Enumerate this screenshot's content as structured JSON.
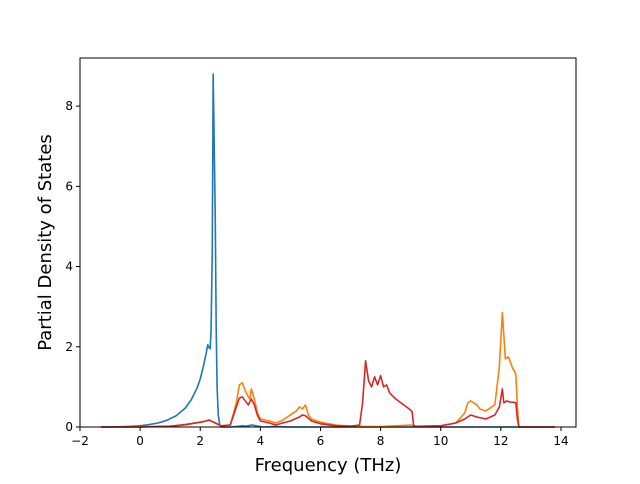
{
  "chart_data": {
    "type": "line",
    "title": "",
    "xlabel": "Frequency (THz)",
    "ylabel": "Partial Density of States",
    "xlim": [
      -2,
      14.5
    ],
    "ylim": [
      0,
      9.2
    ],
    "xticks": [
      -2,
      0,
      2,
      4,
      6,
      8,
      10,
      12,
      14
    ],
    "yticks": [
      0,
      2,
      4,
      6,
      8
    ],
    "grid": false,
    "legend": "none",
    "series": [
      {
        "color": "#1f77b4",
        "x": [
          -1.3,
          -1.0,
          -0.5,
          0.0,
          0.3,
          0.6,
          0.9,
          1.2,
          1.5,
          1.7,
          1.9,
          2.0,
          2.1,
          2.2,
          2.25,
          2.3,
          2.33,
          2.36,
          2.4,
          2.43,
          2.46,
          2.5,
          2.53,
          2.56,
          2.6,
          2.65,
          2.7,
          2.75,
          3.0,
          3.3,
          3.4,
          3.5,
          3.6,
          3.7,
          3.8,
          3.9,
          4.0,
          4.1,
          4.5,
          5.0,
          6.0,
          8.0,
          10.0,
          12.0,
          13.0,
          13.8
        ],
        "y": [
          0.0,
          0.0,
          0.01,
          0.03,
          0.06,
          0.1,
          0.17,
          0.28,
          0.47,
          0.68,
          0.98,
          1.2,
          1.5,
          1.85,
          2.05,
          1.97,
          1.95,
          2.4,
          4.4,
          8.8,
          7.3,
          5.2,
          2.5,
          1.0,
          0.3,
          0.05,
          0.0,
          0.0,
          0.0,
          0.02,
          0.03,
          0.02,
          0.03,
          0.05,
          0.04,
          0.02,
          0.01,
          0.0,
          0.01,
          0.0,
          0.0,
          0.0,
          0.0,
          0.0,
          0.0,
          0.0
        ]
      },
      {
        "color": "#ff7f0e",
        "x": [
          -1.3,
          -0.5,
          0.5,
          1.0,
          1.5,
          2.0,
          2.2,
          2.3,
          2.5,
          2.7,
          3.0,
          3.2,
          3.3,
          3.4,
          3.5,
          3.6,
          3.65,
          3.7,
          3.8,
          3.9,
          4.0,
          4.3,
          4.5,
          4.7,
          5.0,
          5.2,
          5.3,
          5.4,
          5.5,
          5.6,
          5.7,
          6.0,
          6.5,
          7.0,
          7.4,
          8.0,
          8.5,
          9.0,
          9.2,
          10.0,
          10.5,
          10.8,
          10.9,
          11.0,
          11.1,
          11.2,
          11.3,
          11.5,
          11.6,
          11.8,
          11.95,
          12.05,
          12.15,
          12.25,
          12.35,
          12.4,
          12.45,
          12.5,
          12.55,
          12.6,
          13.0,
          13.8
        ],
        "y": [
          0.0,
          0.0,
          0.01,
          0.02,
          0.05,
          0.12,
          0.15,
          0.18,
          0.1,
          0.03,
          0.05,
          0.6,
          1.05,
          1.1,
          0.9,
          0.75,
          0.7,
          0.95,
          0.7,
          0.35,
          0.2,
          0.15,
          0.1,
          0.15,
          0.3,
          0.4,
          0.5,
          0.45,
          0.55,
          0.3,
          0.2,
          0.12,
          0.05,
          0.02,
          0.01,
          0.01,
          0.03,
          0.05,
          0.02,
          0.03,
          0.1,
          0.35,
          0.6,
          0.65,
          0.6,
          0.55,
          0.45,
          0.4,
          0.45,
          0.55,
          1.5,
          2.85,
          1.7,
          1.75,
          1.55,
          1.45,
          1.4,
          1.3,
          0.5,
          0.0,
          0.0,
          0.0
        ]
      },
      {
        "color": "#d62728",
        "x": [
          -1.3,
          0.0,
          1.0,
          1.5,
          2.0,
          2.2,
          2.3,
          2.5,
          2.7,
          3.0,
          3.2,
          3.3,
          3.4,
          3.5,
          3.6,
          3.7,
          3.8,
          3.9,
          4.0,
          4.3,
          4.5,
          5.0,
          5.3,
          5.4,
          5.5,
          5.7,
          6.0,
          6.5,
          7.0,
          7.3,
          7.4,
          7.5,
          7.6,
          7.7,
          7.8,
          7.9,
          8.0,
          8.1,
          8.2,
          8.3,
          8.5,
          9.0,
          9.05,
          9.1,
          9.2,
          10.0,
          10.5,
          10.8,
          11.0,
          11.2,
          11.5,
          11.8,
          11.95,
          12.05,
          12.1,
          12.2,
          12.3,
          12.4,
          12.5,
          12.55,
          12.6,
          13.0,
          13.8
        ],
        "y": [
          0.0,
          0.0,
          0.02,
          0.06,
          0.12,
          0.15,
          0.17,
          0.1,
          0.03,
          0.05,
          0.5,
          0.72,
          0.75,
          0.65,
          0.55,
          0.7,
          0.55,
          0.3,
          0.15,
          0.1,
          0.05,
          0.15,
          0.25,
          0.3,
          0.28,
          0.15,
          0.08,
          0.03,
          0.02,
          0.05,
          0.6,
          1.65,
          1.15,
          1.0,
          1.25,
          1.05,
          1.28,
          1.0,
          1.05,
          0.85,
          0.7,
          0.42,
          0.38,
          0.02,
          0.01,
          0.03,
          0.1,
          0.2,
          0.3,
          0.25,
          0.2,
          0.3,
          0.5,
          0.95,
          0.6,
          0.65,
          0.62,
          0.62,
          0.6,
          0.2,
          0.0,
          0.0,
          0.0
        ]
      }
    ]
  }
}
